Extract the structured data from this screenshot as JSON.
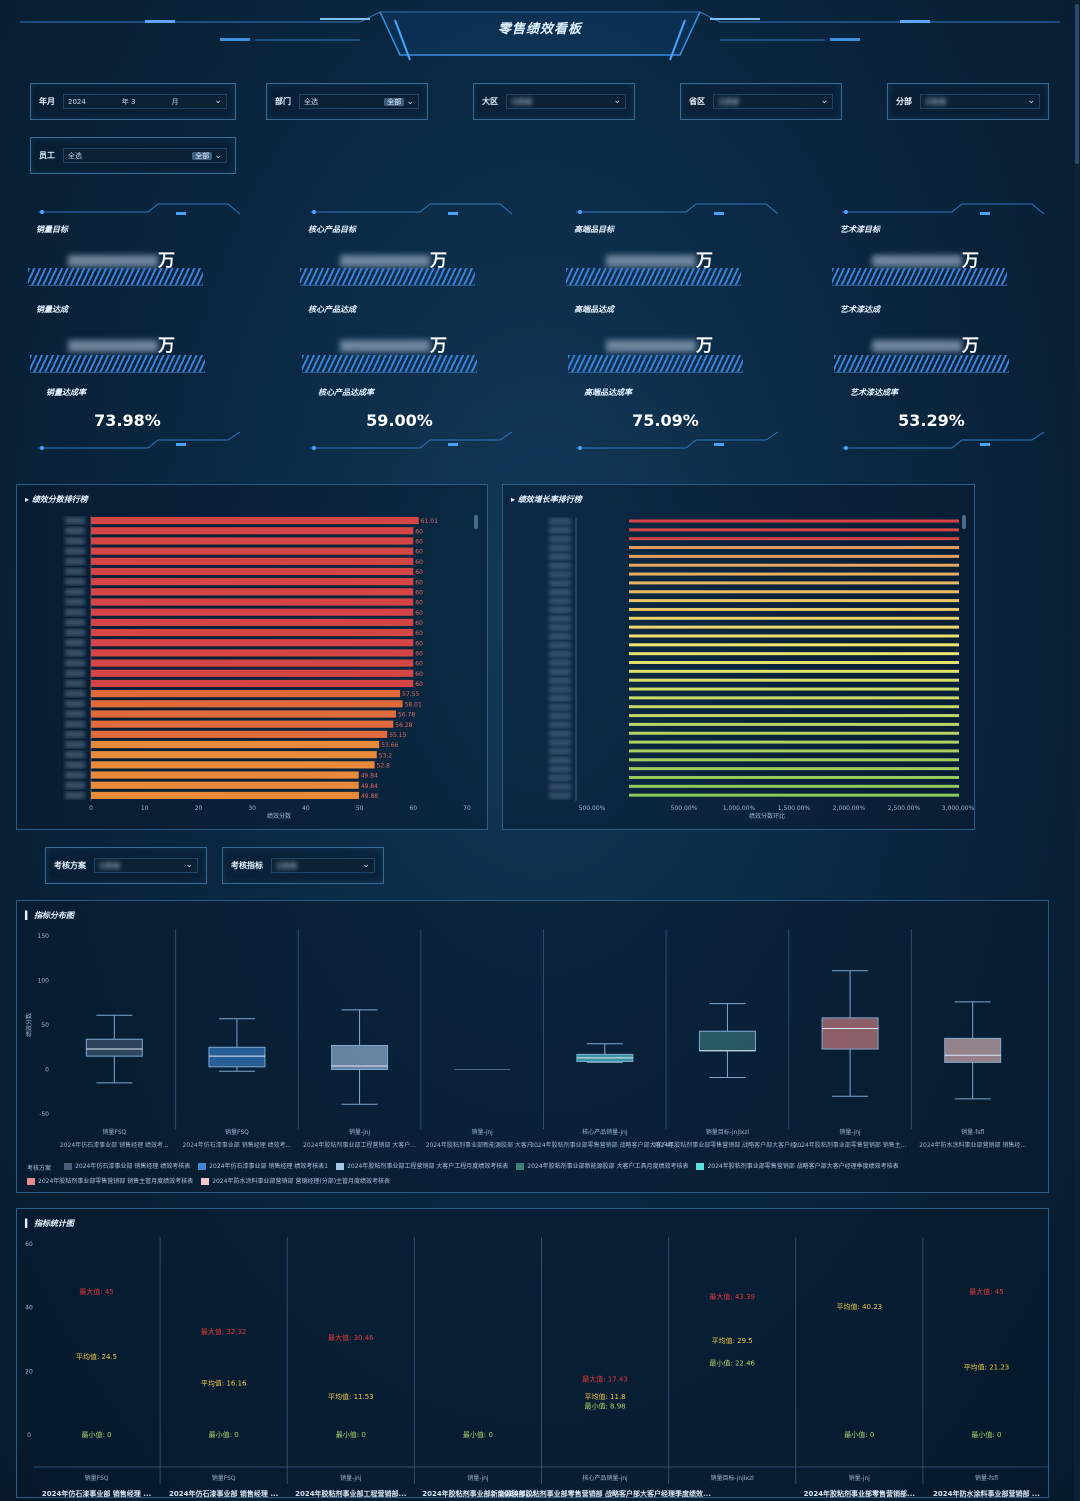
{
  "header": {
    "title": "零售绩效看板"
  },
  "filters": [
    {
      "label": "年月",
      "value": "2024",
      "extra": "年 3",
      "pill": "月"
    },
    {
      "label": "部门",
      "value": "全选",
      "pill": "全部"
    },
    {
      "label": "大区",
      "value": "无数据"
    },
    {
      "label": "省区",
      "value": "无数据"
    },
    {
      "label": "分部",
      "value": "无数据"
    },
    {
      "label": "员工",
      "value": "全选",
      "pill": "全部"
    }
  ],
  "kpis": [
    {
      "target_label": "销量目标",
      "target_unit": "万",
      "achieved_label": "销量达成",
      "achieved_unit": "万",
      "rate_label": "销量达成率",
      "rate": "73.98%"
    },
    {
      "target_label": "核心产品目标",
      "target_unit": "万",
      "achieved_label": "核心产品达成",
      "achieved_unit": "万",
      "rate_label": "核心产品达成率",
      "rate": "59.00%"
    },
    {
      "target_label": "高端品目标",
      "target_unit": "万",
      "achieved_label": "高端品达成",
      "achieved_unit": "万",
      "rate_label": "高端品达成率",
      "rate": "75.09%"
    },
    {
      "target_label": "艺术漆目标",
      "target_unit": "万",
      "achieved_label": "艺术漆达成",
      "achieved_unit": "万",
      "rate_label": "艺术漆达成率",
      "rate": "53.29%"
    }
  ],
  "ranking": {
    "title": "绩效分数排行榜",
    "axis_label": "绩效分数",
    "colors": {
      "high": "#d64545",
      "mid": "#e06a3a",
      "low": "#e88a3a"
    }
  },
  "growth": {
    "title": "绩效增长率排行榜",
    "axis_label": "绩效分数环比",
    "ticks": [
      "500.00%",
      "500.00%",
      "1,000.00%",
      "1,500.00%",
      "2,000.00%",
      "2,500.00%",
      "3,000.00%"
    ]
  },
  "selectors": [
    {
      "label": "考核方案",
      "value": "无数据"
    },
    {
      "label": "考核指标",
      "value": "无数据"
    }
  ],
  "boxplot": {
    "title": "指标分布图",
    "ylabel": "绩效分数",
    "legend_title": "考核方案",
    "legend": [
      {
        "label": "2024年仿石漆事业部 销售经理 绩效考核表",
        "color": "#4a5d78"
      },
      {
        "label": "2024年仿石漆事业部 销售经理 绩效考核表1",
        "color": "#3e88d6"
      },
      {
        "label": "2024年胶粘剂事业部工程营销部 大客户工程月度绩效考核表",
        "color": "#a7c5e8"
      },
      {
        "label": "2024年胶粘剂事业部新能源胶部 大客户工具月度绩效考核表",
        "color": "#3f7f7e"
      },
      {
        "label": "2024年胶粘剂事业部零售营销部 战略客户部大客户经理季度绩效考核表",
        "color": "#5ee0e2"
      },
      {
        "label": "2024年胶粘剂事业部零售营销部 销售主管月度绩效考核表",
        "color": "#e58b8b"
      },
      {
        "label": "2024年防水涂料事业部营销部 营销经理(分部)主管月度绩效考核表",
        "color": "#f3c7c7"
      }
    ],
    "categories": [
      {
        "metric": "销量FSQ",
        "plan": "2024年仿石漆事业部 销售经理 绩效考..."
      },
      {
        "metric": "销量FSQ",
        "plan": "2024年仿石漆事业部 销售经理 绩效考..."
      },
      {
        "metric": "销量-jnj",
        "plan": "2024年胶粘剂事业部工程营销部 大客户..."
      },
      {
        "metric": "销量-jnj",
        "plan": "2024年胶粘剂事业部新能源胶部 大客户..."
      },
      {
        "metric": "核心产品销量-jnj",
        "plan": "2024年胶粘剂事业部零售营销部 战略客户部大客户经理季度绩效考核表"
      },
      {
        "metric": "销量目标-jnjlxzl",
        "plan": "2024年胶粘剂事业部零售营销部 战略客户部大客户经理季度绩效考核表"
      },
      {
        "metric": "销量-jnj",
        "plan": "2024年胶粘剂事业部零售营销部 销售主..."
      },
      {
        "metric": "销量-fsfl",
        "plan": "2024年防水涂料事业部营销部 销售经..."
      }
    ]
  },
  "statistics": {
    "title": "指标统计图",
    "max_label": "最大值:",
    "avg_label": "平均值:",
    "min_label": "最小值:",
    "columns": [
      {
        "metric": "销量FSQ",
        "plan": "2024年仿石漆事业部 销售经理 ...",
        "max": "45",
        "avg": "24.5",
        "min": "0"
      },
      {
        "metric": "销量FSQ",
        "plan": "2024年仿石漆事业部 销售经理 ...",
        "max": "32.32",
        "avg": "16.16",
        "min": "0"
      },
      {
        "metric": "销量-jnj",
        "plan": "2024年胶粘剂事业部工程营销部...",
        "max": "30.46",
        "avg": "11.53",
        "min": "0"
      },
      {
        "metric": "销量-jnj",
        "plan": "2024年胶粘剂事业部新能源胶部...",
        "max": "",
        "avg": "",
        "min": "0"
      },
      {
        "metric": "核心产品销量-jnj",
        "plan": "2024年胶粘剂事业部零售营销部 战略客户部大客户经理季度绩效...",
        "max": "17.43",
        "avg": "11.8",
        "min": "8.98"
      },
      {
        "metric": "销量目标-jnjlxzl",
        "plan": "",
        "max": "43.39",
        "avg": "29.5",
        "min": "22.46"
      },
      {
        "metric": "销量-jnj",
        "plan": "2024年胶粘剂事业部零售营销部...",
        "max": "",
        "avg": "40.23",
        "min": "0"
      },
      {
        "metric": "销量-fsfl",
        "plan": "2024年防水涂料事业部营销部 ...",
        "max": "45",
        "avg": "21.23",
        "min": "0"
      }
    ]
  },
  "chart_data": [
    {
      "type": "bar",
      "title": "绩效分数排行榜",
      "xlabel": "绩效分数",
      "xlim": [
        0,
        70
      ],
      "xticks": [
        "0",
        "10",
        "20",
        "30",
        "40",
        "50",
        "60",
        "70"
      ],
      "values": [
        61.01,
        60,
        60,
        60,
        60,
        60,
        60,
        60,
        60,
        60,
        60,
        60,
        60,
        60,
        60,
        60,
        60,
        57.55,
        58.01,
        56.78,
        56.28,
        55.15,
        53.66,
        53.2,
        52.8,
        49.84,
        49.84,
        49.88
      ],
      "value_labels": [
        "61.01",
        "60",
        "60",
        "60",
        "60",
        "60",
        "60",
        "60",
        "60",
        "60",
        "60",
        "60",
        "60",
        "60",
        "60",
        "60",
        "60",
        "57.55",
        "58.01",
        "56.78",
        "56.28",
        "55.15",
        "53.66",
        "53.2",
        "52.8",
        "49.84",
        "49.84",
        "49.88"
      ]
    },
    {
      "type": "bar",
      "title": "绩效增长率排行榜",
      "xlabel": "绩效分数环比",
      "count": 32
    },
    {
      "type": "boxplot",
      "title": "指标分布图",
      "ylabel": "绩效分数",
      "ylim": [
        -50,
        150
      ],
      "yticks": [
        "150",
        "100",
        "50",
        "0",
        "-50"
      ],
      "boxes": [
        {
          "min": -15,
          "q1": 15,
          "median": 23,
          "q3": 34,
          "max": 61,
          "color": "#4a5d78"
        },
        {
          "min": -2,
          "q1": 3,
          "median": 15,
          "q3": 25,
          "max": 57,
          "color": "#3e88d6"
        },
        {
          "min": -39,
          "q1": 0,
          "median": 4,
          "q3": 27,
          "max": 67,
          "color": "#a7c5e8"
        },
        {
          "min": 0,
          "q1": 0,
          "median": 0,
          "q3": 0,
          "max": 0,
          "color": "#3f7f7e"
        },
        {
          "min": 8,
          "q1": 9,
          "median": 13,
          "q3": 17,
          "max": 29,
          "color": "#5ee0e2"
        },
        {
          "min": -9,
          "q1": 21,
          "median": 21,
          "q3": 43,
          "max": 74,
          "color": "#3f7f7e"
        },
        {
          "min": -30,
          "q1": 23,
          "median": 46,
          "q3": 58,
          "max": 111,
          "color": "#e58b8b"
        },
        {
          "min": -33,
          "q1": 8,
          "median": 16,
          "q3": 35,
          "max": 76,
          "color": "#f3c7c7"
        }
      ]
    },
    {
      "type": "table",
      "title": "指标统计图",
      "ylim": [
        0,
        60
      ],
      "yticks": [
        "60",
        "40",
        "20",
        "0"
      ]
    }
  ]
}
